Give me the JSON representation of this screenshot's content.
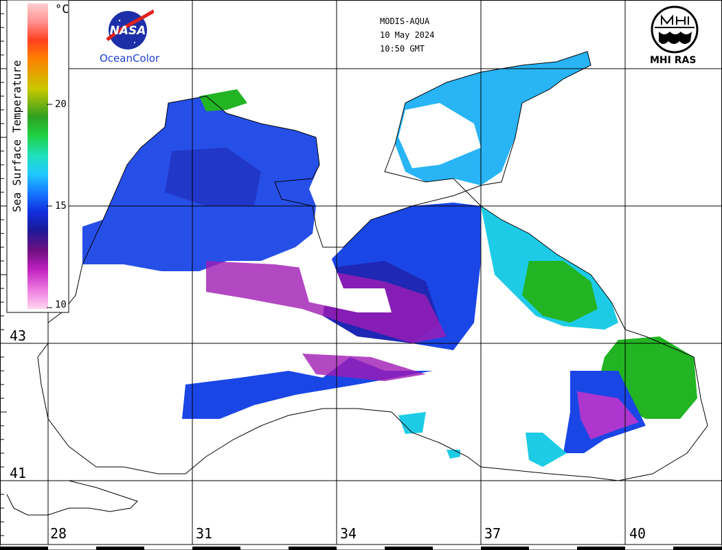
{
  "header": {
    "sensor": "MODIS-AQUA",
    "date": "10 May 2024",
    "time": "10:50 GMT"
  },
  "logos": {
    "nasa_text": "NASA",
    "nasa_subtitle": "OceanColor",
    "mhi_text": "MHI RAS",
    "nasa_icon": "nasa-meatball-icon",
    "mhi_icon": "mhi-ras-emblem-icon"
  },
  "colorbar": {
    "title": "Sea Surface Temperature",
    "unit": "°C",
    "min": 10,
    "max": 25,
    "ticks": [
      "20",
      "15",
      "10"
    ],
    "colors": [
      "#ffd6ef",
      "#f080e0",
      "#c020c0",
      "#701080",
      "#1a1a9a",
      "#1030e0",
      "#1478ff",
      "#20c8ff",
      "#20e0c0",
      "#20d040",
      "#30a020",
      "#c8c800",
      "#ff8000",
      "#ff4020",
      "#ff9090",
      "#ffd0d0"
    ]
  },
  "axes": {
    "lon_labels": [
      "28",
      "31",
      "34",
      "37",
      "40"
    ],
    "lat_labels": [
      "43",
      "41"
    ]
  },
  "sst_palette": {
    "warm_green": "#22b422",
    "light_blue": "#28b4f5",
    "cyan": "#1ecbe6",
    "blue": "#1a46e6",
    "deep_blue": "#1e28b4",
    "purple": "#a01ab4",
    "magenta": "#d232c8"
  }
}
